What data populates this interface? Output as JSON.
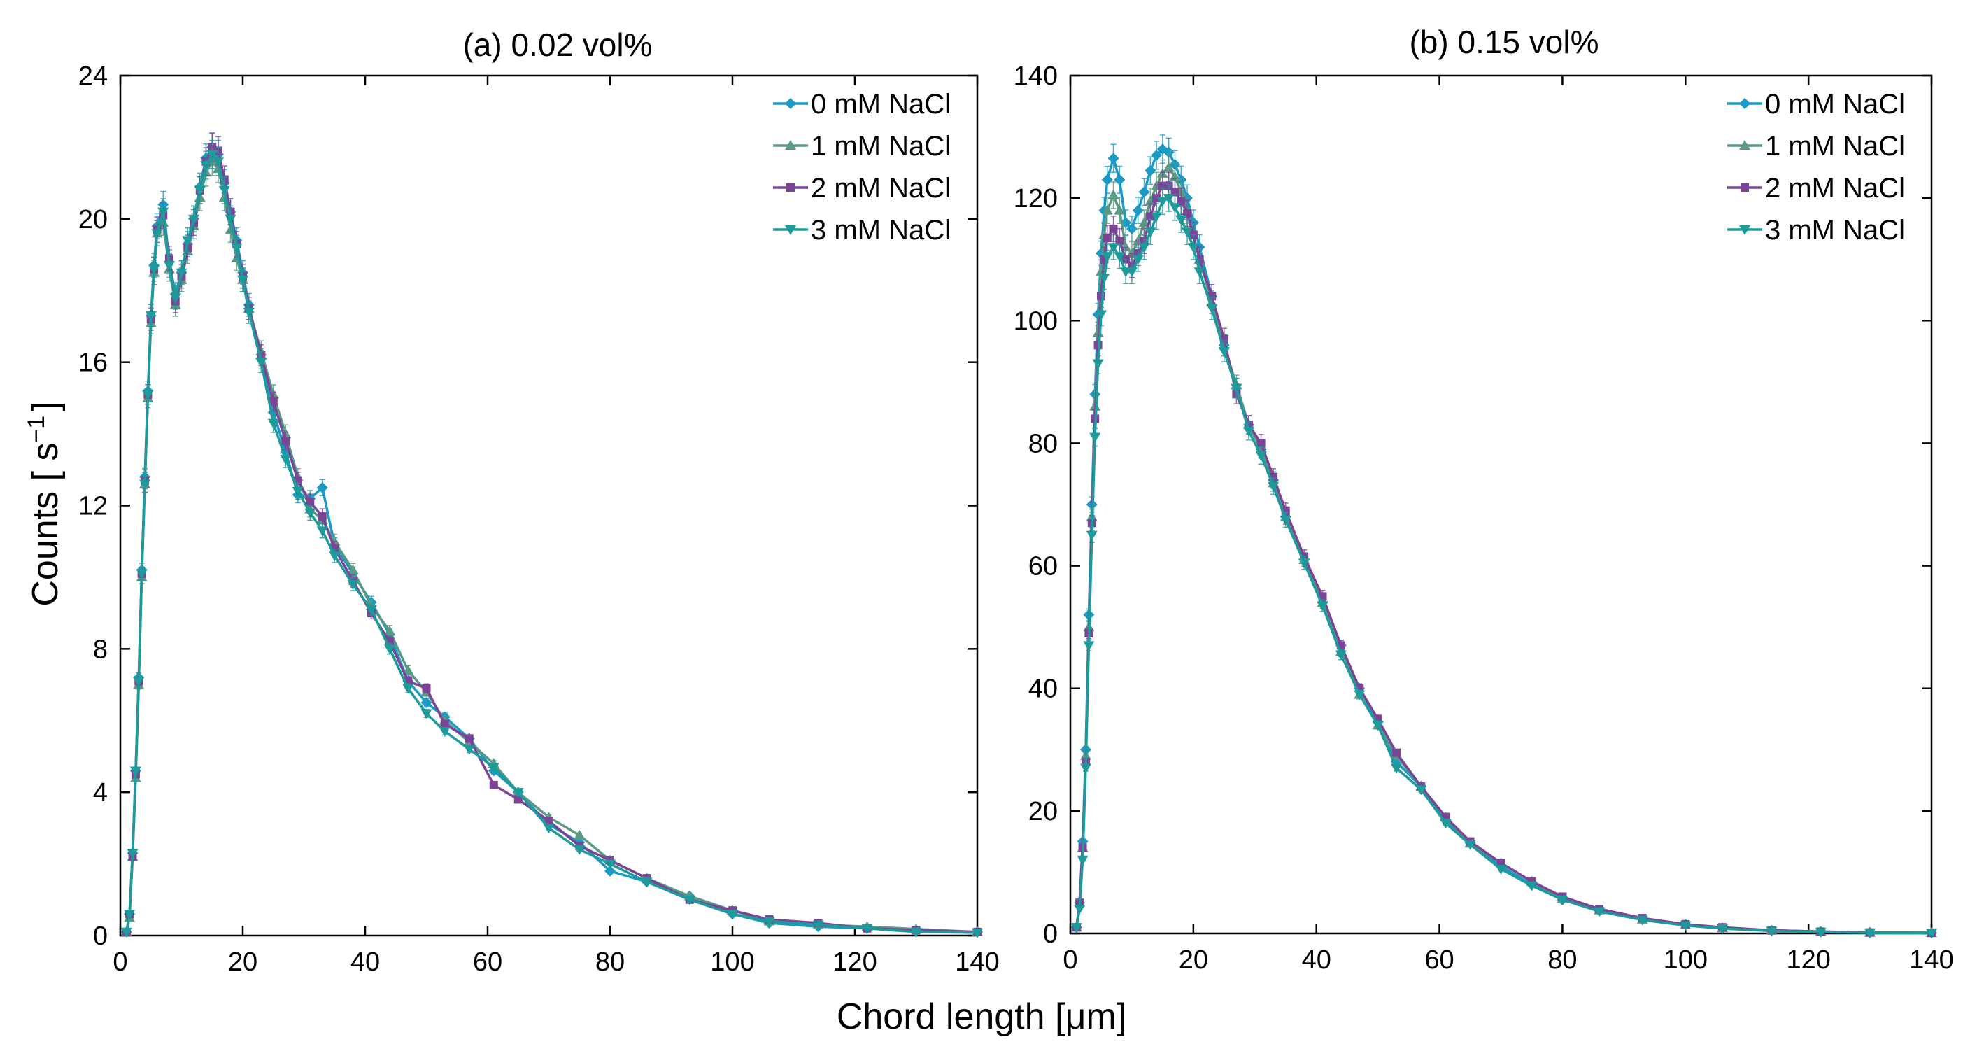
{
  "figure": {
    "shared_xlabel": "Chord length [μm]",
    "ylabel_main": "Counts [ s",
    "ylabel_sup": "−1",
    "ylabel_end": "]"
  },
  "colors": {
    "0 mM NaCl": "#1a9ac4",
    "1 mM NaCl": "#5a9a84",
    "2 mM NaCl": "#7b4497",
    "3 mM NaCl": "#1d9a9a"
  },
  "chart_data": [
    {
      "type": "line",
      "title": "(a) 0.02 vol%",
      "xlabel": "Chord length [μm]",
      "ylabel": "Counts [ s−1]",
      "xlim": [
        0,
        140
      ],
      "ylim": [
        0,
        24
      ],
      "xticks": [
        0,
        20,
        40,
        60,
        80,
        100,
        120,
        140
      ],
      "yticks": [
        0,
        4,
        8,
        12,
        16,
        20,
        24
      ],
      "legend": "top-right",
      "x": [
        1,
        1.5,
        2,
        2.5,
        3,
        3.5,
        4,
        4.5,
        5,
        5.5,
        6,
        7,
        8,
        9,
        10,
        11,
        12,
        13,
        14,
        15,
        16,
        17,
        18,
        19,
        20,
        21,
        23,
        25,
        27,
        29,
        31,
        33,
        35,
        38,
        41,
        44,
        47,
        50,
        53,
        57,
        61,
        65,
        70,
        75,
        80,
        86,
        93,
        100,
        106,
        114,
        122,
        130,
        140
      ],
      "series": [
        {
          "name": "0 mM NaCl",
          "marker": "diamond",
          "values": [
            0.1,
            0.6,
            2.3,
            4.6,
            7.2,
            10.2,
            12.8,
            15.2,
            17.3,
            18.7,
            19.8,
            20.4,
            18.8,
            17.9,
            18.5,
            19.3,
            20.0,
            20.9,
            21.7,
            22.0,
            21.8,
            21.0,
            20.2,
            19.4,
            18.5,
            17.6,
            16.1,
            14.6,
            13.5,
            12.3,
            12.2,
            12.5,
            10.9,
            10.1,
            9.3,
            8.4,
            7.1,
            6.5,
            6.1,
            5.5,
            4.6,
            4.0,
            3.1,
            2.6,
            1.8,
            1.5,
            1.1,
            0.6,
            0.35,
            0.25,
            0.2,
            0.15,
            0.1
          ]
        },
        {
          "name": "1 mM NaCl",
          "marker": "triangle-up",
          "values": [
            0.1,
            0.5,
            2.2,
            4.4,
            7.0,
            10.0,
            12.6,
            15.0,
            17.1,
            18.5,
            19.6,
            19.9,
            18.6,
            17.6,
            18.3,
            19.1,
            19.8,
            20.6,
            21.3,
            21.6,
            21.4,
            20.6,
            19.7,
            18.9,
            18.3,
            17.5,
            16.3,
            15.1,
            14.0,
            12.8,
            11.9,
            11.6,
            11.0,
            10.2,
            9.2,
            8.5,
            7.4,
            6.8,
            6.0,
            5.4,
            4.8,
            4.0,
            3.3,
            2.8,
            2.1,
            1.6,
            1.1,
            0.7,
            0.4,
            0.3,
            0.25,
            0.18,
            0.1
          ]
        },
        {
          "name": "2 mM NaCl",
          "marker": "square",
          "values": [
            0.1,
            0.6,
            2.2,
            4.5,
            7.1,
            10.1,
            12.7,
            15.1,
            17.2,
            18.6,
            19.7,
            20.1,
            18.9,
            17.7,
            18.4,
            19.2,
            19.9,
            20.8,
            21.6,
            22.0,
            21.9,
            21.1,
            20.2,
            19.3,
            18.4,
            17.5,
            16.2,
            14.9,
            13.8,
            12.7,
            12.1,
            11.7,
            10.8,
            9.9,
            9.0,
            8.2,
            7.1,
            6.9,
            5.9,
            5.5,
            4.2,
            3.8,
            3.2,
            2.5,
            2.1,
            1.6,
            1.0,
            0.7,
            0.45,
            0.35,
            0.2,
            0.15,
            0.1
          ]
        },
        {
          "name": "3 mM NaCl",
          "marker": "triangle-down",
          "values": [
            0.1,
            0.6,
            2.3,
            4.6,
            7.1,
            10.1,
            12.6,
            15.1,
            17.3,
            18.6,
            19.6,
            20.2,
            18.7,
            17.8,
            18.5,
            19.4,
            20.0,
            20.8,
            21.5,
            21.8,
            21.6,
            20.8,
            20.0,
            19.2,
            18.3,
            17.4,
            16.0,
            14.3,
            13.3,
            12.4,
            11.8,
            11.3,
            10.6,
            9.8,
            9.1,
            8.0,
            6.9,
            6.2,
            5.7,
            5.2,
            4.7,
            4.0,
            3.0,
            2.4,
            2.0,
            1.5,
            1.0,
            0.6,
            0.4,
            0.3,
            0.2,
            0.1,
            0.08
          ]
        }
      ]
    },
    {
      "type": "line",
      "title": "(b) 0.15 vol%",
      "xlabel": "Chord length [μm]",
      "ylabel": "Counts [ s−1]",
      "xlim": [
        0,
        140
      ],
      "ylim": [
        0,
        140
      ],
      "xticks": [
        0,
        20,
        40,
        60,
        80,
        100,
        120,
        140
      ],
      "yticks": [
        0,
        20,
        40,
        60,
        80,
        100,
        120,
        140
      ],
      "legend": "top-right",
      "x": [
        1,
        1.5,
        2,
        2.5,
        3,
        3.5,
        4,
        4.5,
        5,
        5.5,
        6,
        7,
        8,
        9,
        10,
        11,
        12,
        13,
        14,
        15,
        16,
        17,
        18,
        19,
        20,
        21,
        23,
        25,
        27,
        29,
        31,
        33,
        35,
        38,
        41,
        44,
        47,
        50,
        53,
        57,
        61,
        65,
        70,
        75,
        80,
        86,
        93,
        100,
        106,
        114,
        122,
        130,
        140
      ],
      "series": [
        {
          "name": "0 mM NaCl",
          "marker": "diamond",
          "values": [
            1,
            5,
            15,
            30,
            52,
            70,
            88,
            101,
            111,
            118,
            123,
            126.5,
            123,
            116,
            115,
            118,
            121,
            124.5,
            127,
            128,
            127.5,
            125.5,
            123,
            120,
            116,
            112,
            104,
            96,
            89,
            83,
            79,
            74,
            68,
            61,
            54,
            47,
            40,
            34.5,
            28,
            24,
            18.5,
            14.8,
            11,
            8,
            5.5,
            3.7,
            2.3,
            1.5,
            0.9,
            0.5,
            0.3,
            0.15,
            0.1
          ]
        },
        {
          "name": "1 mM NaCl",
          "marker": "triangle-up",
          "values": [
            1,
            5,
            14,
            29,
            50,
            68,
            86,
            98,
            108,
            114,
            118,
            120.5,
            118,
            112,
            111,
            113,
            116,
            119.5,
            122,
            124,
            125,
            123.5,
            121,
            118,
            114,
            110,
            103,
            96,
            89.5,
            83,
            79,
            73.5,
            68,
            61,
            54,
            46,
            39,
            34,
            29,
            24,
            19,
            14.7,
            11.5,
            8.5,
            5.7,
            3.8,
            2.3,
            1.4,
            0.9,
            0.5,
            0.3,
            0.15,
            0.1
          ]
        },
        {
          "name": "2 mM NaCl",
          "marker": "square",
          "values": [
            1,
            5,
            14,
            28,
            49,
            67,
            84,
            96,
            104,
            110,
            113.5,
            115,
            113,
            110,
            109,
            111,
            113,
            117,
            120,
            122,
            122,
            121,
            119.5,
            117.5,
            114,
            110,
            104,
            97,
            88,
            83,
            80,
            74.5,
            69,
            61.5,
            55,
            47,
            40,
            35,
            29.5,
            24,
            19,
            15,
            11.5,
            8.5,
            6,
            4,
            2.5,
            1.5,
            1,
            0.5,
            0.3,
            0.15,
            0.1
          ]
        },
        {
          "name": "3 mM NaCl",
          "marker": "triangle-down",
          "values": [
            1,
            4,
            12,
            27,
            47,
            65,
            81,
            93,
            101,
            107,
            110.5,
            112,
            110.5,
            108,
            108,
            110,
            112,
            114.5,
            117,
            119.5,
            120,
            118.5,
            116.5,
            114.5,
            112,
            108,
            102,
            95,
            89,
            82,
            78,
            73,
            67.5,
            60.5,
            53.5,
            45.5,
            39,
            34,
            27,
            23.5,
            18,
            14.5,
            10.5,
            7.8,
            5.5,
            3.6,
            2.2,
            1.3,
            0.8,
            0.4,
            0.2,
            0.1,
            0.05
          ]
        }
      ]
    }
  ]
}
